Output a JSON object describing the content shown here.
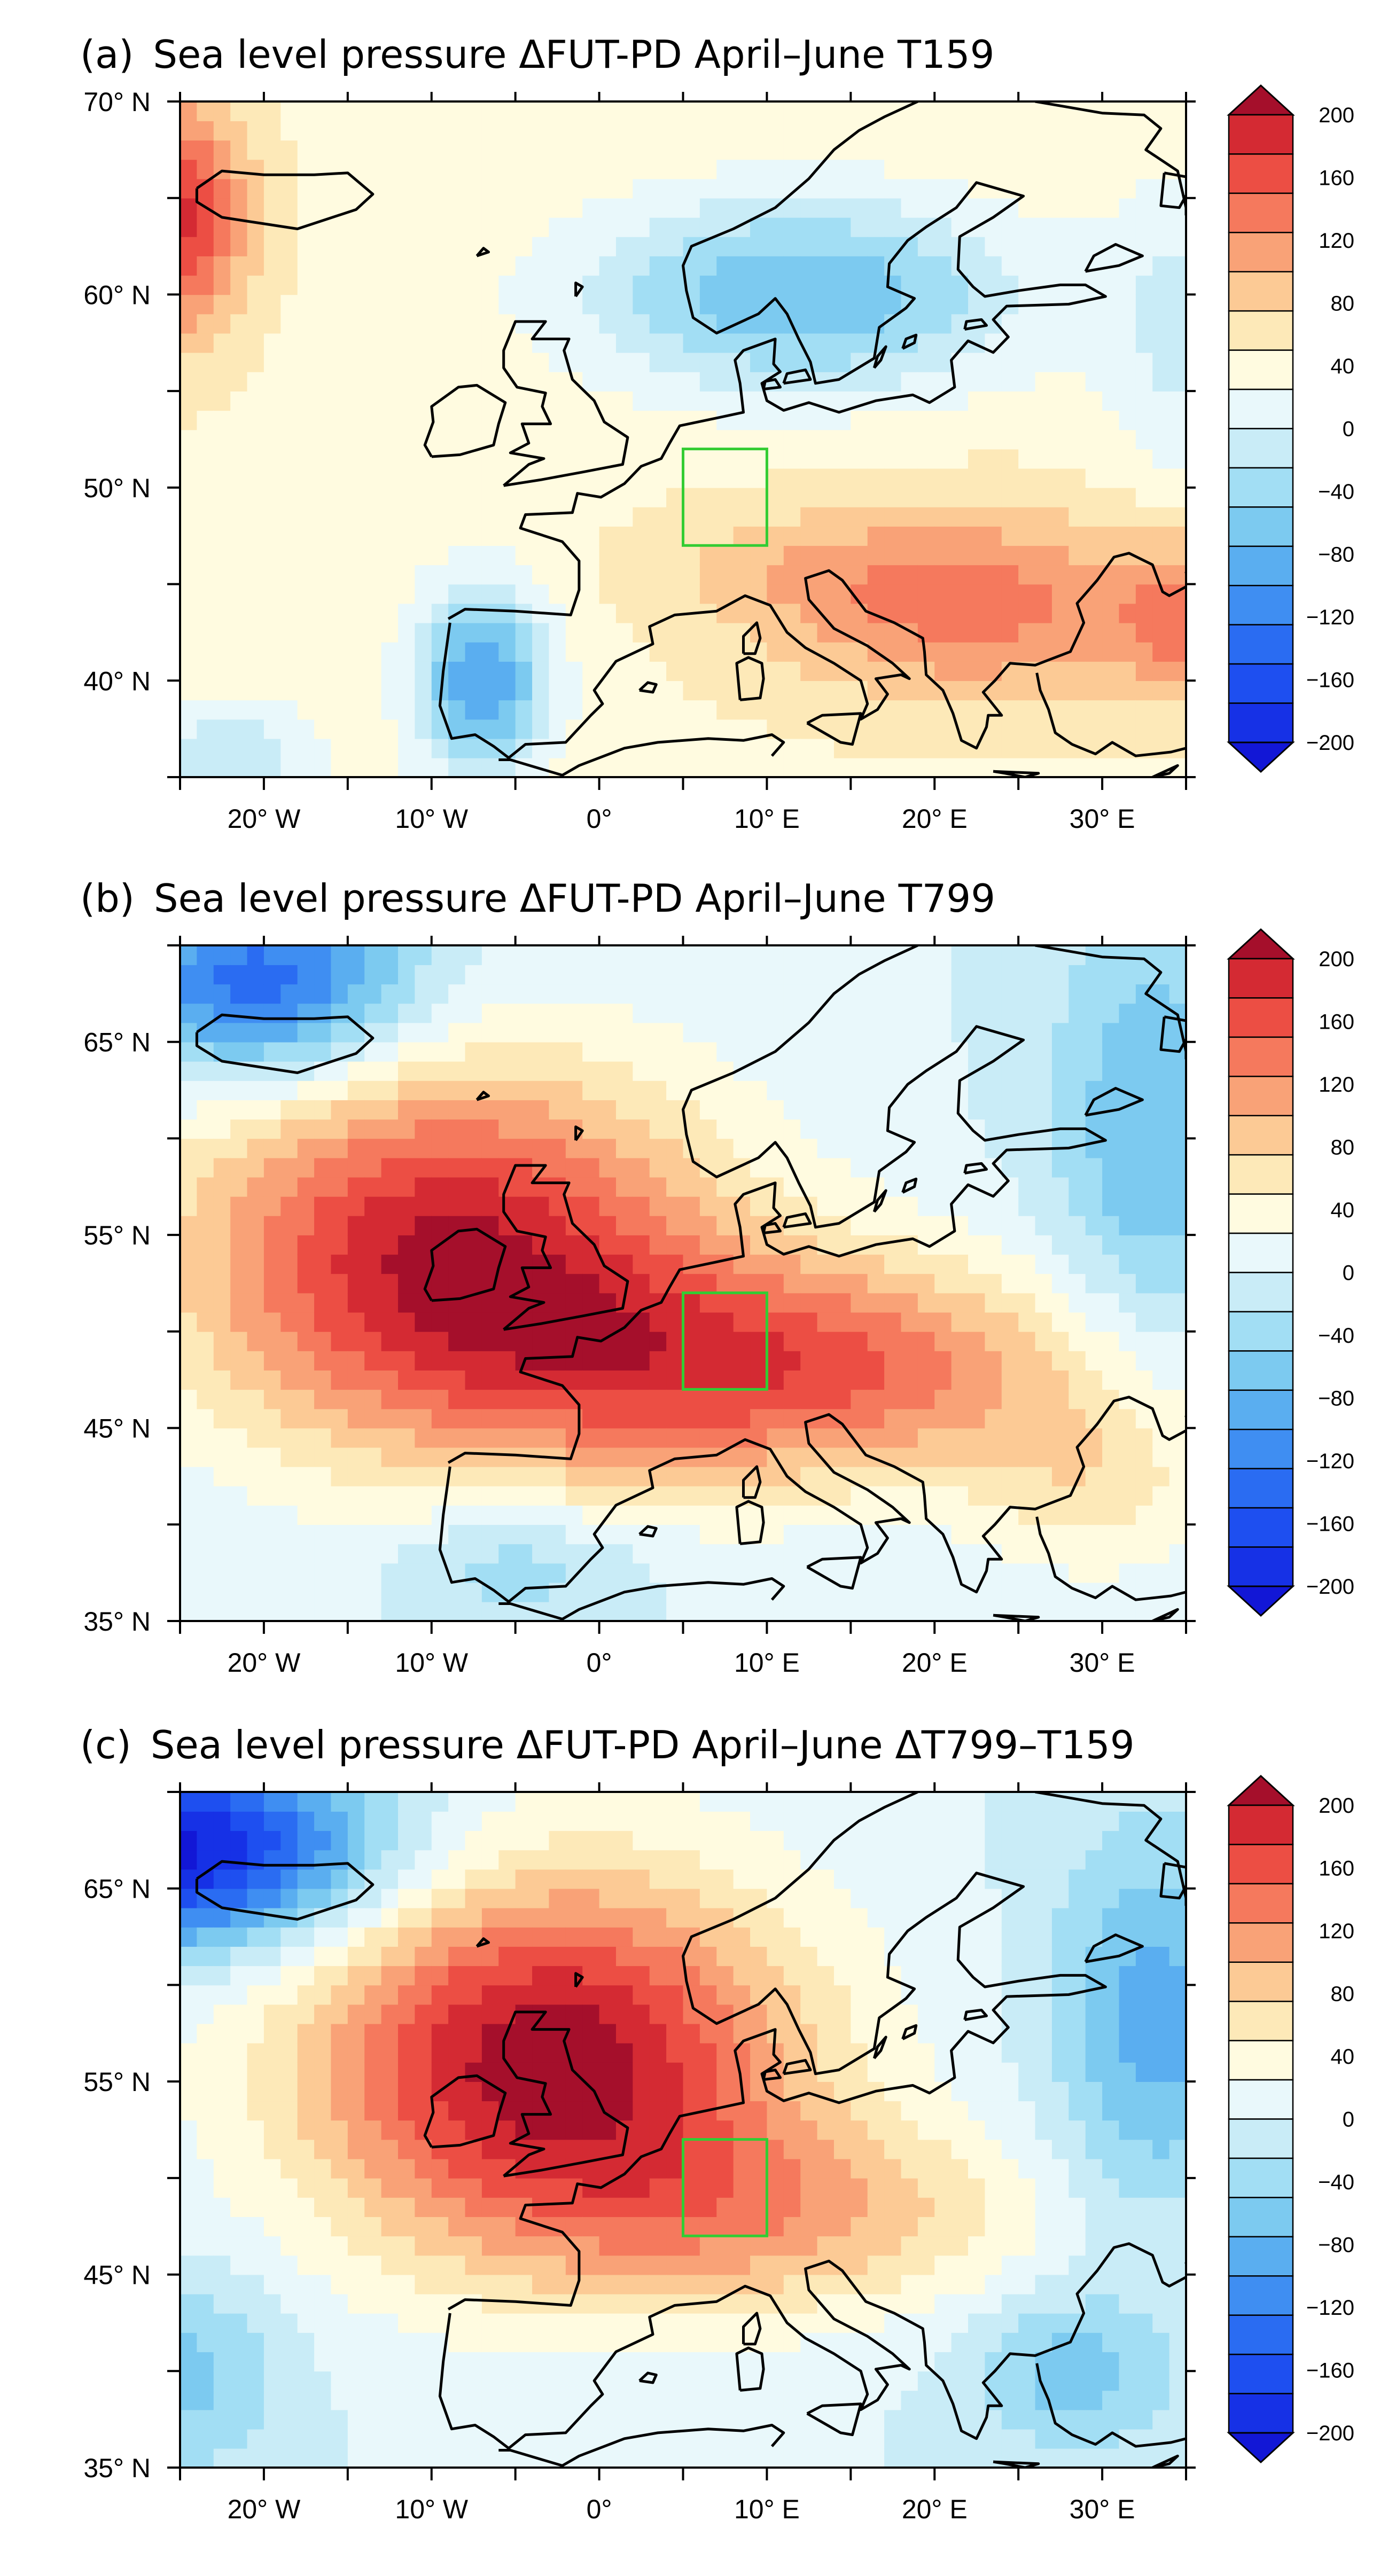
{
  "figure": {
    "panels": [
      {
        "letter": "(a)",
        "title": "Sea level pressure ΔFUT-PD April–June T159",
        "lat_range": [
          35,
          70
        ],
        "lat_ticks": [
          "70° N",
          "60° N",
          "50° N",
          "40° N"
        ],
        "lat_tick_values": [
          70,
          60,
          50,
          40
        ],
        "pattern": "a"
      },
      {
        "letter": "(b)",
        "title": "Sea level pressure ΔFUT-PD April–June T799",
        "lat_range": [
          35,
          70
        ],
        "lat_ticks": [
          "65° N",
          "55° N",
          "45° N",
          "35° N"
        ],
        "lat_tick_values": [
          65,
          55,
          45,
          35
        ],
        "pattern": "b"
      },
      {
        "letter": "(c)",
        "title": "Sea level pressure ΔFUT-PD April–June ΔT799–T159",
        "lat_range": [
          35,
          70
        ],
        "lat_ticks": [
          "65° N",
          "55° N",
          "45° N",
          "35° N"
        ],
        "lat_tick_values": [
          65,
          55,
          45,
          35
        ],
        "pattern": "c"
      }
    ],
    "lon_range": [
      -25,
      35
    ],
    "lon_ticks": [
      "20° W",
      "10° W",
      "0°",
      "10° E",
      "20° E",
      "30° E"
    ],
    "lon_tick_values": [
      -20,
      -10,
      0,
      10,
      20,
      30
    ],
    "highlight_box": {
      "lon": [
        5,
        10
      ],
      "lat": [
        47,
        52
      ],
      "color": "#33cc33"
    },
    "colorbar": {
      "labels": [
        "200",
        "160",
        "120",
        "80",
        "40",
        "0",
        "−40",
        "−80",
        "−120",
        "−160",
        "−200"
      ],
      "colors": [
        "#a50f2b",
        "#d42a33",
        "#ec4e44",
        "#f5795d",
        "#f9a277",
        "#fcca95",
        "#fde9b8",
        "#fffbe0",
        "#e9f8fb",
        "#c9ecf7",
        "#a2def4",
        "#7ccaf0",
        "#5aaef0",
        "#3f8ef2",
        "#2a6cf2",
        "#1e4ff0",
        "#1631e6",
        "#1217d6"
      ]
    }
  }
}
